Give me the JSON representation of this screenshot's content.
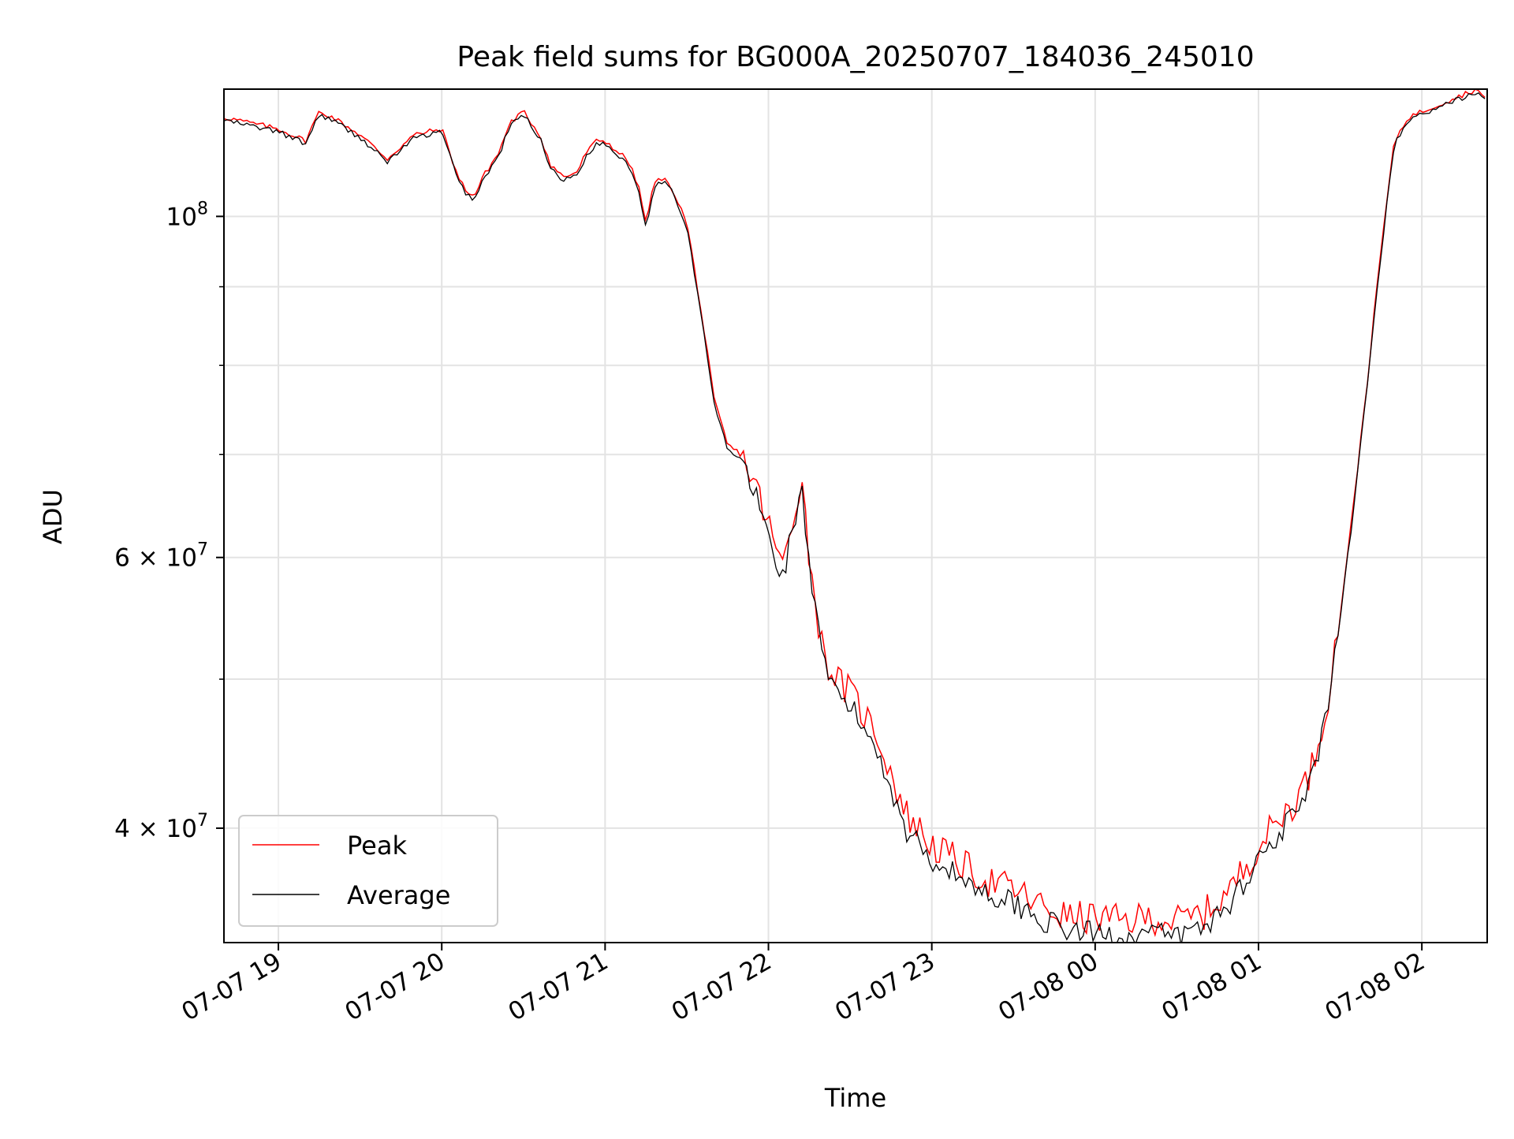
{
  "chart_data": {
    "type": "line",
    "title": "Peak field sums for BG000A_20250707_184036_245010",
    "xlabel": "Time",
    "ylabel": "ADU",
    "yscale": "log",
    "xlim": [
      "2025-07-07T18:40",
      "2025-07-08T02:24"
    ],
    "ylim": [
      33700000,
      121000000
    ],
    "grid": true,
    "legend": "lower-left",
    "x_ticks": [
      "07-07 19",
      "07-07 20",
      "07-07 21",
      "07-07 22",
      "07-07 23",
      "07-08 00",
      "07-08 01",
      "07-08 02"
    ],
    "y_ticks": [
      {
        "value": 40000000,
        "base": "4",
        "mult": "×",
        "pow": "10",
        "exp": "7"
      },
      {
        "value": 60000000,
        "base": "6",
        "mult": "×",
        "pow": "10",
        "exp": "7"
      },
      {
        "value": 100000000,
        "base": "",
        "mult": "",
        "pow": "10",
        "exp": "8"
      }
    ],
    "series": [
      {
        "name": "Peak",
        "color": "#ff0000"
      },
      {
        "name": "Average",
        "color": "#000000"
      }
    ],
    "x": [
      "18:40",
      "18:50",
      "19:00",
      "19:05",
      "19:10",
      "19:15",
      "19:20",
      "19:30",
      "19:40",
      "19:45",
      "19:50",
      "20:00",
      "20:03",
      "20:06",
      "20:09",
      "20:12",
      "20:15",
      "20:18",
      "20:21",
      "20:25",
      "20:30",
      "20:36",
      "20:40",
      "20:45",
      "20:50",
      "20:53",
      "20:57",
      "21:00",
      "21:05",
      "21:08",
      "21:12",
      "21:15",
      "21:18",
      "21:21",
      "21:25",
      "21:30",
      "21:33",
      "21:36",
      "21:40",
      "21:45",
      "21:50",
      "21:55",
      "22:00",
      "22:05",
      "22:10",
      "22:12",
      "22:15",
      "22:20",
      "22:25",
      "22:30",
      "22:40",
      "22:50",
      "23:00",
      "23:10",
      "23:20",
      "23:30",
      "23:40",
      "23:50",
      "00:00",
      "00:10",
      "00:20",
      "00:30",
      "00:40",
      "00:50",
      "01:00",
      "01:05",
      "01:10",
      "01:15",
      "01:20",
      "01:25",
      "01:30",
      "01:35",
      "01:40",
      "01:45",
      "01:50",
      "01:55",
      "02:00",
      "02:05",
      "02:10",
      "02:15",
      "02:20",
      "02:24"
    ],
    "peak": [
      116,
      115,
      114,
      113,
      112,
      117,
      116,
      113,
      109,
      111,
      113,
      114,
      110,
      106,
      104,
      103,
      106,
      108,
      110,
      115,
      117,
      113,
      108,
      106,
      107,
      110,
      112,
      112,
      110,
      109,
      105,
      99,
      105,
      106,
      104,
      99,
      92,
      85,
      76,
      71,
      70,
      67,
      63,
      59,
      65,
      68,
      60,
      52,
      50,
      49,
      46,
      41,
      39,
      38,
      37,
      36.5,
      35.6,
      35,
      35,
      34.8,
      35,
      34.8,
      35.2,
      36.5,
      39,
      40,
      41,
      42,
      44,
      48,
      55,
      65,
      78,
      95,
      112,
      116,
      117,
      118,
      119,
      120,
      121,
      119
    ],
    "average": [
      115.5,
      114.5,
      113.5,
      112.5,
      111.5,
      116.5,
      115.5,
      112.5,
      108.5,
      110.5,
      112.5,
      113.5,
      109.5,
      105.5,
      103.5,
      102.5,
      105.5,
      107.5,
      109.5,
      114.5,
      116.5,
      112.5,
      107.5,
      105.5,
      106.5,
      109.5,
      111.5,
      111.5,
      109.5,
      108.5,
      104.5,
      98.5,
      104.5,
      105.5,
      103.5,
      98.5,
      91.5,
      84.5,
      75.5,
      70.5,
      69.5,
      66,
      62,
      58,
      64,
      67,
      59,
      51,
      49,
      48,
      45,
      40,
      38.2,
      37.2,
      36.3,
      35.8,
      34.9,
      34.3,
      34.2,
      34,
      34.2,
      34,
      34.5,
      35.8,
      38.2,
      39.2,
      40.2,
      41.2,
      43.2,
      47.2,
      54.5,
      64.5,
      77.5,
      94.5,
      111.5,
      115.5,
      116.5,
      117.5,
      118.5,
      119.5,
      120.5,
      118.5
    ],
    "y_unit_note": "series values in millions of ADU"
  }
}
